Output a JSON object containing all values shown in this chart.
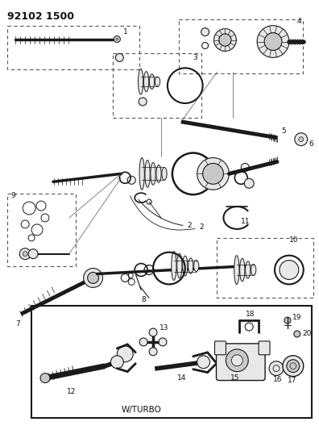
{
  "bg_color": "#ffffff",
  "fig_width": 3.96,
  "fig_height": 5.33,
  "dpi": 100,
  "header_text": "92102 1500",
  "line_color": "#1a1a1a",
  "gray_fill": "#c8c8c8",
  "dark_fill": "#555555",
  "light_fill": "#e8e8e8",
  "wturbo_text": "W/TURBO"
}
